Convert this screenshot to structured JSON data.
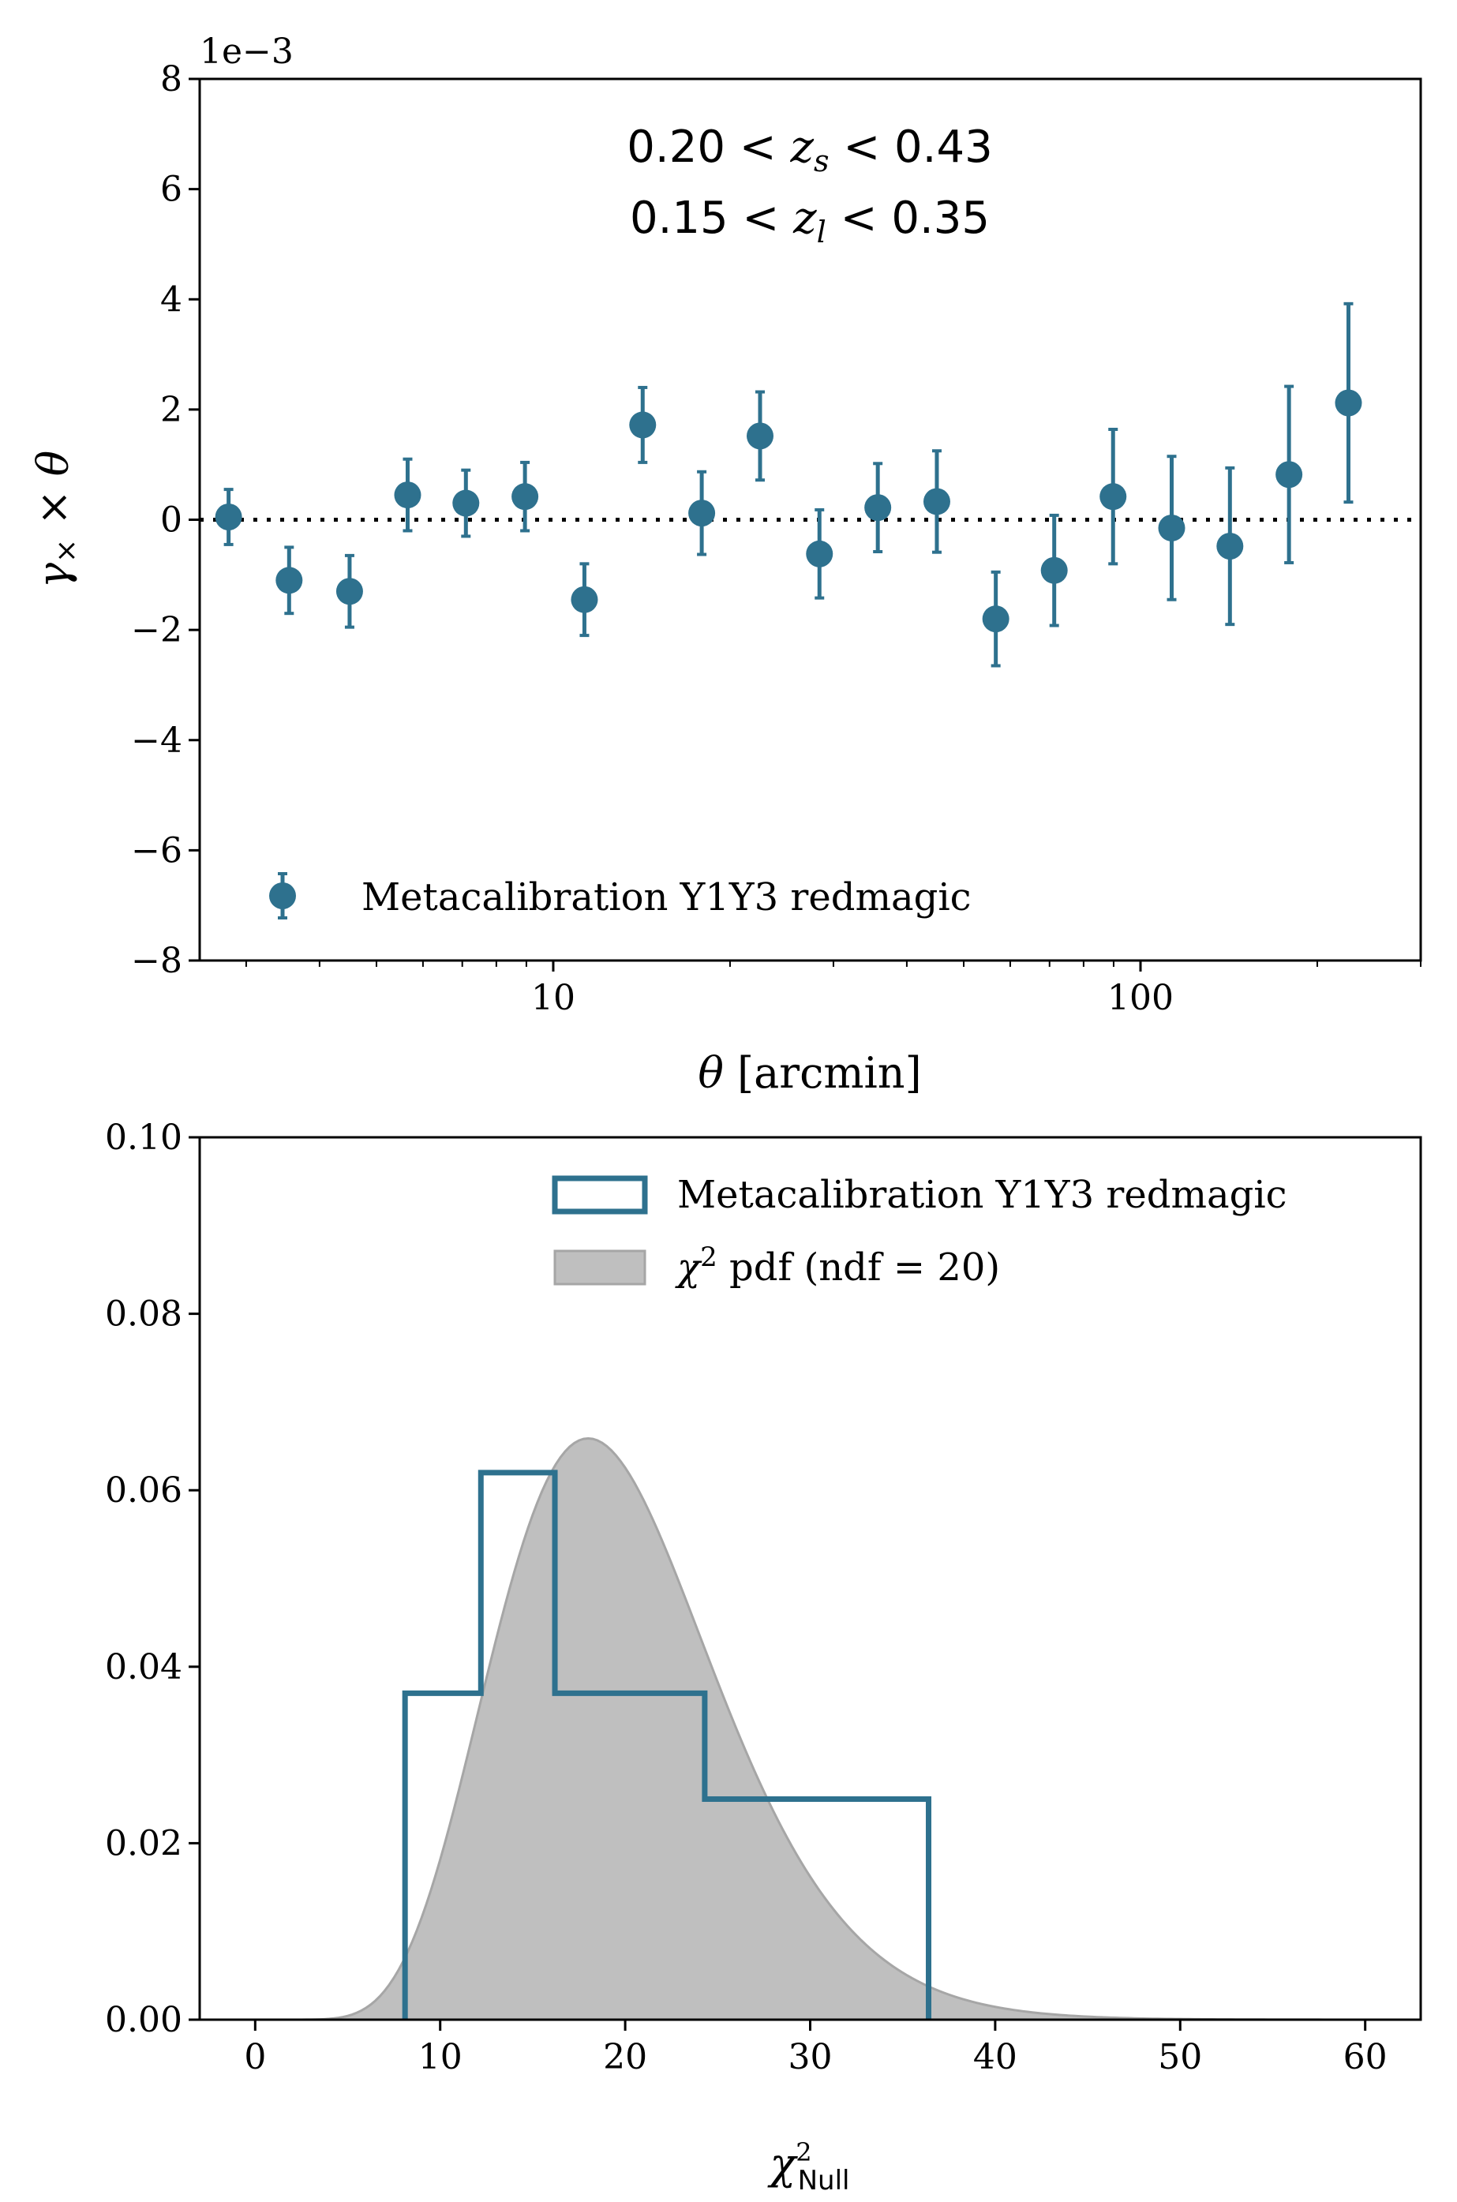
{
  "colors": {
    "series": "#2e718e",
    "pdf_fill": "#bfbfbf",
    "pdf_edge": "#a6a6a6"
  },
  "chart_data": [
    {
      "type": "scatter",
      "title": "",
      "xlabel": "θ [arcmin]",
      "ylabel": "γ× × θ",
      "xscale": "log",
      "xlim": [
        2.5,
        300
      ],
      "ylim": [
        -8,
        8
      ],
      "y_multiplier": "1e−3",
      "xticks": [
        10,
        100
      ],
      "xtick_labels": [
        "10",
        "100"
      ],
      "yticks": [
        -8,
        -6,
        -4,
        -2,
        0,
        2,
        4,
        6,
        8
      ],
      "ytick_labels": [
        "−8",
        "−6",
        "−4",
        "−2",
        "0",
        "2",
        "4",
        "6",
        "8"
      ],
      "annotation": {
        "line1": "0.20 < z_s < 0.43",
        "line2": "0.15 < z_l < 0.35"
      },
      "reference_line": {
        "y": 0,
        "style": "dotted"
      },
      "legend": {
        "label": "Metacalibration Y1Y3 redmagic",
        "position": "lower-left"
      },
      "series": [
        {
          "name": "Metacalibration Y1Y3 redmagic",
          "points": [
            {
              "x": 2.8,
              "y": 0.05,
              "err": 0.5
            },
            {
              "x": 3.55,
              "y": -1.1,
              "err": 0.6
            },
            {
              "x": 4.5,
              "y": -1.3,
              "err": 0.65
            },
            {
              "x": 5.65,
              "y": 0.45,
              "err": 0.65
            },
            {
              "x": 7.1,
              "y": 0.3,
              "err": 0.6
            },
            {
              "x": 8.95,
              "y": 0.42,
              "err": 0.62
            },
            {
              "x": 11.3,
              "y": -1.45,
              "err": 0.65
            },
            {
              "x": 14.2,
              "y": 1.72,
              "err": 0.68
            },
            {
              "x": 17.9,
              "y": 0.12,
              "err": 0.75
            },
            {
              "x": 22.5,
              "y": 1.52,
              "err": 0.8
            },
            {
              "x": 28.4,
              "y": -0.62,
              "err": 0.8
            },
            {
              "x": 35.7,
              "y": 0.22,
              "err": 0.8
            },
            {
              "x": 45.0,
              "y": 0.33,
              "err": 0.92
            },
            {
              "x": 56.7,
              "y": -1.8,
              "err": 0.85
            },
            {
              "x": 71.3,
              "y": -0.92,
              "err": 1.0
            },
            {
              "x": 89.8,
              "y": 0.42,
              "err": 1.22
            },
            {
              "x": 113.0,
              "y": -0.15,
              "err": 1.3
            },
            {
              "x": 142.0,
              "y": -0.48,
              "err": 1.42
            },
            {
              "x": 179.0,
              "y": 0.82,
              "err": 1.6
            },
            {
              "x": 226.0,
              "y": 2.12,
              "err": 1.8
            }
          ]
        }
      ]
    },
    {
      "type": "bar",
      "title": "",
      "xlabel": "χ²_Null",
      "ylabel": "",
      "xlim": [
        -3,
        63
      ],
      "ylim": [
        0,
        0.1
      ],
      "xticks": [
        0,
        10,
        20,
        30,
        40,
        50,
        60
      ],
      "xtick_labels": [
        "0",
        "10",
        "20",
        "30",
        "40",
        "50",
        "60"
      ],
      "yticks": [
        0,
        0.02,
        0.04,
        0.06,
        0.08,
        0.1
      ],
      "ytick_labels": [
        "0.00",
        "0.02",
        "0.04",
        "0.06",
        "0.08",
        "0.10"
      ],
      "histogram": {
        "name": "Metacalibration Y1Y3 redmagic",
        "bin_edges": [
          8.1,
          12.2,
          16.2,
          24.3,
          36.4
        ],
        "values": [
          0.037,
          0.062,
          0.037,
          0.025
        ]
      },
      "pdf": {
        "name": "χ² pdf (ndf = 20)",
        "ndf": 20
      },
      "legend": {
        "entries": [
          "Metacalibration Y1Y3 redmagic",
          "χ² pdf (ndf = 20)"
        ],
        "position": "top-right"
      }
    }
  ]
}
